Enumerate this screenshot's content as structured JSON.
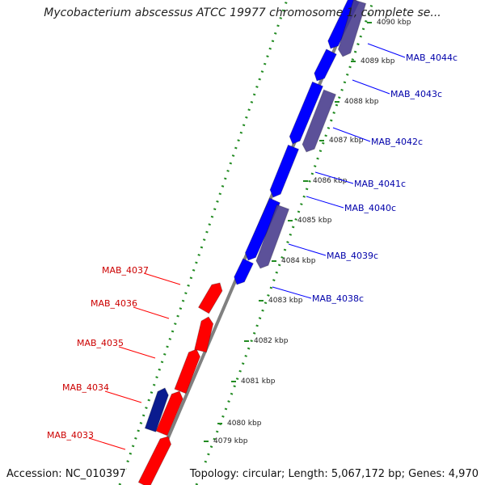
{
  "title": "Mycobacterium abscessus ATCC 19977 chromosome 1, complete se...",
  "accession": "Accession: NC_010397",
  "topology": "Topology: circular; Length: 5,067,172 bp; Genes: 4,970",
  "colors": {
    "plus_strand": "#ff0000",
    "minus_strand": "#0000ff",
    "minus_label": "#0000aa",
    "plus_label": "#cc0000",
    "other_feature": "#4b3f8f",
    "ruler_ticks": "#228b22",
    "backbone": "#808080"
  },
  "scale": {
    "unit": "kbp",
    "ticks": [
      {
        "value": 4079,
        "label": "4079 kbp"
      },
      {
        "value": 4080,
        "label": "4080 kbp"
      },
      {
        "value": 4081,
        "label": "4081 kbp"
      },
      {
        "value": 4082,
        "label": "4082 kbp"
      },
      {
        "value": 4083,
        "label": "4083 kbp"
      },
      {
        "value": 4084,
        "label": "4084 kbp"
      },
      {
        "value": 4085,
        "label": "4085 kbp"
      },
      {
        "value": 4086,
        "label": "4086 kbp"
      },
      {
        "value": 4087,
        "label": "4087 kbp"
      },
      {
        "value": 4088,
        "label": "4088 kbp"
      },
      {
        "value": 4089,
        "label": "4089 kbp"
      },
      {
        "value": 4090,
        "label": "4090 kbp"
      }
    ]
  },
  "genes_minus": [
    {
      "name": "MAB_4038c"
    },
    {
      "name": "MAB_4039c"
    },
    {
      "name": "MAB_4040c"
    },
    {
      "name": "MAB_4041c"
    },
    {
      "name": "MAB_4042c"
    },
    {
      "name": "MAB_4043c"
    },
    {
      "name": "MAB_4044c"
    }
  ],
  "genes_plus": [
    {
      "name": "MAB_4033"
    },
    {
      "name": "MAB_4034"
    },
    {
      "name": "MAB_4035"
    },
    {
      "name": "MAB_4036"
    },
    {
      "name": "MAB_4037"
    }
  ]
}
